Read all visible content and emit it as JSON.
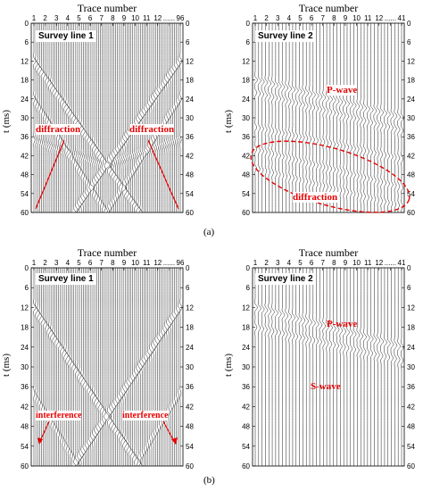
{
  "figure": {
    "x_axis_title": "Trace number",
    "y_axis_title": "t (ms)",
    "caption_a": "(a)",
    "caption_b": "(b)"
  },
  "panels": [
    {
      "id": "a1",
      "label": "Survey line 1",
      "x_ticks": [
        "1",
        "2",
        "3",
        "4",
        "5",
        "6",
        "7",
        "8",
        "9",
        "10",
        "11",
        "12",
        "......",
        "96"
      ],
      "y_ticks": [
        "0",
        "6",
        "12",
        "18",
        "24",
        "30",
        "36",
        "42",
        "48",
        "54",
        "60"
      ],
      "annotations": [
        "diffraction",
        "diffraction"
      ]
    },
    {
      "id": "a2",
      "label": "Survey line 2",
      "x_ticks": [
        "1",
        "2",
        "3",
        "4",
        "5",
        "6",
        "7",
        "8",
        "9",
        "10",
        "11",
        "12",
        "......",
        "41"
      ],
      "y_ticks": [
        "0",
        "6",
        "12",
        "18",
        "24",
        "30",
        "36",
        "42",
        "48",
        "54",
        "60"
      ],
      "annotations": [
        "P-wave",
        "diffraction"
      ]
    },
    {
      "id": "b1",
      "label": "Survey line 1",
      "x_ticks": [
        "1",
        "2",
        "3",
        "4",
        "5",
        "6",
        "7",
        "8",
        "9",
        "10",
        "11",
        "12",
        "......",
        "96"
      ],
      "y_ticks": [
        "0",
        "6",
        "12",
        "18",
        "24",
        "30",
        "36",
        "42",
        "48",
        "54",
        "60"
      ],
      "annotations": [
        "interference",
        "interference"
      ]
    },
    {
      "id": "b2",
      "label": "Survey line 2",
      "x_ticks": [
        "1",
        "2",
        "3",
        "4",
        "5",
        "6",
        "7",
        "8",
        "9",
        "10",
        "11",
        "12",
        "......",
        "41"
      ],
      "y_ticks": [
        "0",
        "6",
        "12",
        "18",
        "24",
        "30",
        "36",
        "42",
        "48",
        "54",
        "60"
      ],
      "annotations": [
        "P-wave",
        "S-wave"
      ]
    }
  ],
  "colors": {
    "annotation": "#e60000",
    "trace": "#000000"
  }
}
